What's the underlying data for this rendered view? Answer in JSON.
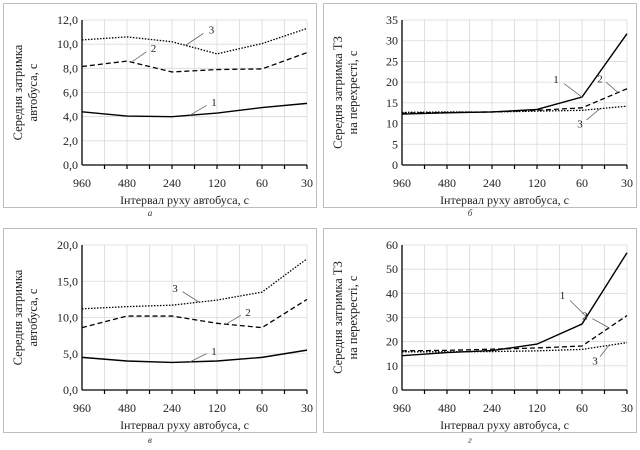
{
  "chart_data": [
    {
      "type": "line",
      "panel_caption": "а",
      "categories": [
        "960",
        "480",
        "240",
        "120",
        "60",
        "30"
      ],
      "xlabel": "Інтервал руху автобуса, с",
      "ylabel": [
        "Середня затримка",
        "автобуса, с"
      ],
      "ylim": [
        0,
        12
      ],
      "ytick_step": 2,
      "yticks": [
        "0,0",
        "2,0",
        "4,0",
        "6,0",
        "8,0",
        "10,0",
        "12,0"
      ],
      "grid": true,
      "series": [
        {
          "name": "1",
          "style": "solid",
          "values": [
            4.4,
            4.05,
            4.0,
            4.3,
            4.75,
            5.1
          ]
        },
        {
          "name": "2",
          "style": "dashed",
          "values": [
            8.15,
            8.6,
            7.7,
            7.9,
            7.95,
            9.3
          ]
        },
        {
          "name": "3",
          "style": "dotted",
          "values": [
            10.35,
            10.6,
            10.2,
            9.2,
            10.05,
            11.3
          ]
        }
      ]
    },
    {
      "type": "line",
      "panel_caption": "б",
      "categories": [
        "960",
        "480",
        "240",
        "120",
        "60",
        "30"
      ],
      "xlabel": "Інтервал руху автобуса, с",
      "ylabel": [
        "Середня затримка ТЗ",
        "на перехресті, с"
      ],
      "ylim": [
        0,
        35
      ],
      "ytick_step": 5,
      "yticks": [
        "0",
        "5",
        "10",
        "15",
        "20",
        "25",
        "30",
        "35"
      ],
      "grid": true,
      "series": [
        {
          "name": "1",
          "style": "solid",
          "values": [
            12.3,
            12.6,
            12.8,
            13.4,
            16.4,
            31.7
          ]
        },
        {
          "name": "2",
          "style": "dashed",
          "values": [
            12.5,
            12.7,
            12.8,
            13.2,
            13.8,
            18.4
          ]
        },
        {
          "name": "3",
          "style": "dotted",
          "values": [
            12.7,
            12.8,
            12.8,
            13.0,
            13.2,
            14.2
          ]
        }
      ]
    },
    {
      "type": "line",
      "panel_caption": "в",
      "categories": [
        "960",
        "480",
        "240",
        "120",
        "60",
        "30"
      ],
      "xlabel": "Інтервал руху автобуса, с",
      "ylabel": [
        "Середня затримка",
        "автобуса, с"
      ],
      "ylim": [
        0,
        20
      ],
      "ytick_step": 5,
      "yticks": [
        "0,0",
        "5,0",
        "10,0",
        "15,0",
        "20,0"
      ],
      "grid": true,
      "series": [
        {
          "name": "1",
          "style": "solid",
          "values": [
            4.5,
            4.0,
            3.8,
            4.0,
            4.5,
            5.5
          ]
        },
        {
          "name": "2",
          "style": "dashed",
          "values": [
            8.6,
            10.2,
            10.2,
            9.2,
            8.6,
            12.5
          ]
        },
        {
          "name": "3",
          "style": "dotted",
          "values": [
            11.2,
            11.5,
            11.7,
            12.4,
            13.5,
            18.1
          ]
        }
      ]
    },
    {
      "type": "line",
      "panel_caption": "г",
      "categories": [
        "960",
        "480",
        "240",
        "120",
        "60",
        "30"
      ],
      "xlabel": "Інтервал руху автобуса, с",
      "ylabel": [
        "Середня затримка ТЗ",
        "на перехресті, с"
      ],
      "ylim": [
        0,
        60
      ],
      "ytick_step": 10,
      "yticks": [
        "0",
        "10",
        "20",
        "30",
        "40",
        "50",
        "60"
      ],
      "grid": true,
      "series": [
        {
          "name": "1",
          "style": "solid",
          "values": [
            14.2,
            15.5,
            16.3,
            19.0,
            27.3,
            56.8
          ]
        },
        {
          "name": "2",
          "style": "dashed",
          "values": [
            16.2,
            16.4,
            16.9,
            17.4,
            18.2,
            30.8
          ]
        },
        {
          "name": "3",
          "style": "dotted",
          "values": [
            15.8,
            15.8,
            15.9,
            16.2,
            16.8,
            19.6
          ]
        }
      ]
    }
  ]
}
